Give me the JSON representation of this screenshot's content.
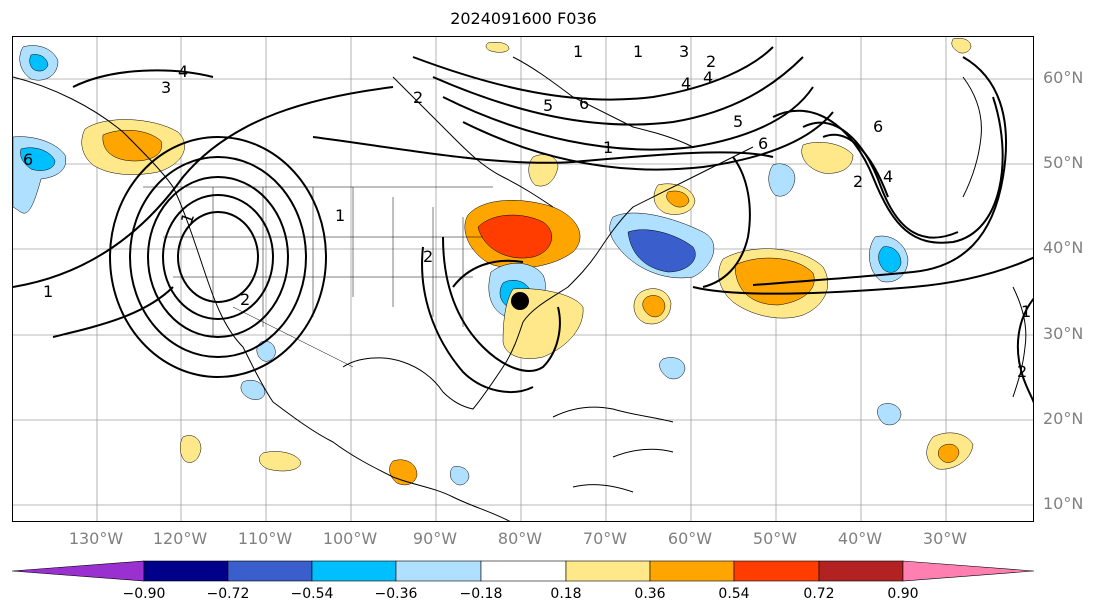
{
  "title": "2024091600 F036",
  "lat_labels": [
    "60°N",
    "50°N",
    "40°N",
    "30°N",
    "20°N",
    "10°N"
  ],
  "lon_labels": [
    "130°W",
    "120°W",
    "110°W",
    "100°W",
    "90°W",
    "80°W",
    "70°W",
    "60°W",
    "50°W",
    "40°W",
    "30°W"
  ],
  "colorbar": {
    "colors": [
      "#9b30d0",
      "#00008b",
      "#3a5fcd",
      "#00bfff",
      "#b0e0ff",
      "#ffffff",
      "#ffe88a",
      "#ffa500",
      "#ff3d00",
      "#b22222",
      "#ff80b0"
    ],
    "ticks": [
      "−0.90",
      "−0.72",
      "−0.54",
      "−0.36",
      "−0.18",
      "0.18",
      "0.36",
      "0.54",
      "0.72",
      "0.90"
    ]
  },
  "contour_labels": [
    "1",
    "2",
    "3",
    "4",
    "5",
    "6",
    "1",
    "2",
    "5",
    "6",
    "4",
    "2",
    "1",
    "6",
    "1",
    "1",
    "2",
    "4",
    "6",
    "1",
    "1",
    "2",
    "3",
    "4",
    "2"
  ],
  "storm_marker": "storm-center"
}
